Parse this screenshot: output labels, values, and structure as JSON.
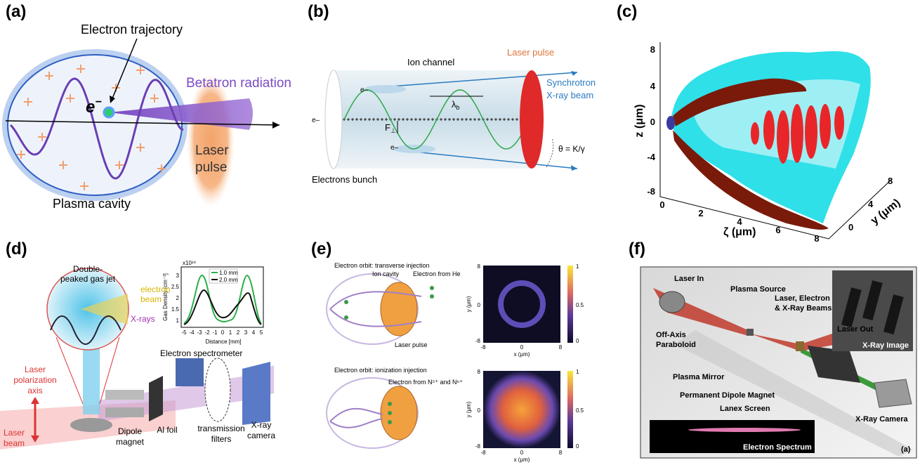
{
  "panels": {
    "a": {
      "label": "(a)",
      "electron_trajectory": "Electron trajectory",
      "electron_symbol": "e",
      "electron_charge": "−",
      "betatron_radiation": "Betatron radiation",
      "laser_pulse": [
        "Laser",
        "pulse"
      ],
      "plasma_cavity": "Plasma cavity"
    },
    "b": {
      "label": "(b)",
      "ion_channel": "Ion channel",
      "laser_pulse": "Laser pulse",
      "xray_beam": [
        "Synchrotron",
        "X-ray beam"
      ],
      "electrons": [
        "e–",
        "e–",
        "e–"
      ],
      "wavelength_symbol": "λ",
      "wavelength_subscript": "b",
      "force_symbol": "F",
      "force_subscript": "⊥",
      "angle": "θ = K/γ",
      "electrons_bunch": "Electrons bunch"
    },
    "c": {
      "label": "(c)",
      "z_axis_label": "z (μm)",
      "zeta_axis_label": "ζ (μm)",
      "y_axis_label": "y (μm)",
      "z_ticks": [
        8,
        4,
        0,
        -4,
        -8
      ],
      "zeta_ticks": [
        0,
        2,
        4,
        6,
        8
      ],
      "y_ticks": [
        0,
        4,
        8
      ]
    },
    "d": {
      "label": "(d)",
      "gas_jet": [
        "Double-",
        "peaked gas jet"
      ],
      "electron_beam": [
        "electron",
        "beam"
      ],
      "xrays": "X-rays",
      "polarization": [
        "Laser",
        "polarization",
        "axis"
      ],
      "laser_beam": [
        "Laser",
        "beam"
      ],
      "dipole_magnet": [
        "Dipole",
        "magnet"
      ],
      "al_foil": "Al foil",
      "filters": [
        "transmission",
        "filters"
      ],
      "camera": [
        "X-ray",
        "camera"
      ],
      "spectrometer": "Electron spectrometer",
      "plot": {
        "multiplier": "x10¹⁹",
        "y_label": "Gas Density [cm⁻³]",
        "x_label": "Distance [mm]",
        "y_ticks": [
          3,
          2.5,
          2,
          1.5,
          1
        ],
        "x_ticks": [
          -5,
          -4,
          -3,
          -2,
          -1,
          0,
          1,
          2,
          3,
          4,
          5
        ],
        "legend": [
          "1.0 mm",
          "2.0 mm"
        ]
      }
    },
    "e": {
      "label": "(e)",
      "top": {
        "title": "Electron orbit: transverse injection",
        "ion_cavity": "Ion cavity",
        "electron_source": "Electron from He",
        "laser_pulse": "Laser pulse"
      },
      "bottom": {
        "title": "Electron orbit: ionization injection",
        "electron_source": "Electron from N⁵⁺ and N⁶⁺"
      },
      "images": [
        {
          "y_label": "y (μm)",
          "x_label": "x (μm)",
          "y_ticks": [
            8,
            0,
            -8
          ],
          "x_ticks": [
            -8,
            0,
            8
          ],
          "colorbar_ticks": [
            1,
            0.5,
            0
          ]
        },
        {
          "y_label": "y (μm)",
          "x_label": "x (μm)",
          "y_ticks": [
            8,
            0,
            -8
          ],
          "x_ticks": [
            -8,
            0,
            8
          ],
          "colorbar_ticks": [
            1,
            0.5,
            0
          ]
        }
      ]
    },
    "f": {
      "label": "(f)",
      "laser_in": "Laser In",
      "plasma_source": "Plasma Source",
      "beams": [
        "Laser, Electron",
        "& X-Ray Beams"
      ],
      "laser_out": "Laser Out",
      "xray_image": "X-Ray Image",
      "paraboloid": [
        "Off-Axis",
        "Paraboloid"
      ],
      "plasma_mirror": "Plasma Mirror",
      "dipole_magnet": "Permanent Dipole Magnet",
      "lanex": "Lanex Screen",
      "camera": "X-Ray Camera",
      "spectrum": "Electron Spectrum",
      "sub_label": "(a)"
    }
  }
}
